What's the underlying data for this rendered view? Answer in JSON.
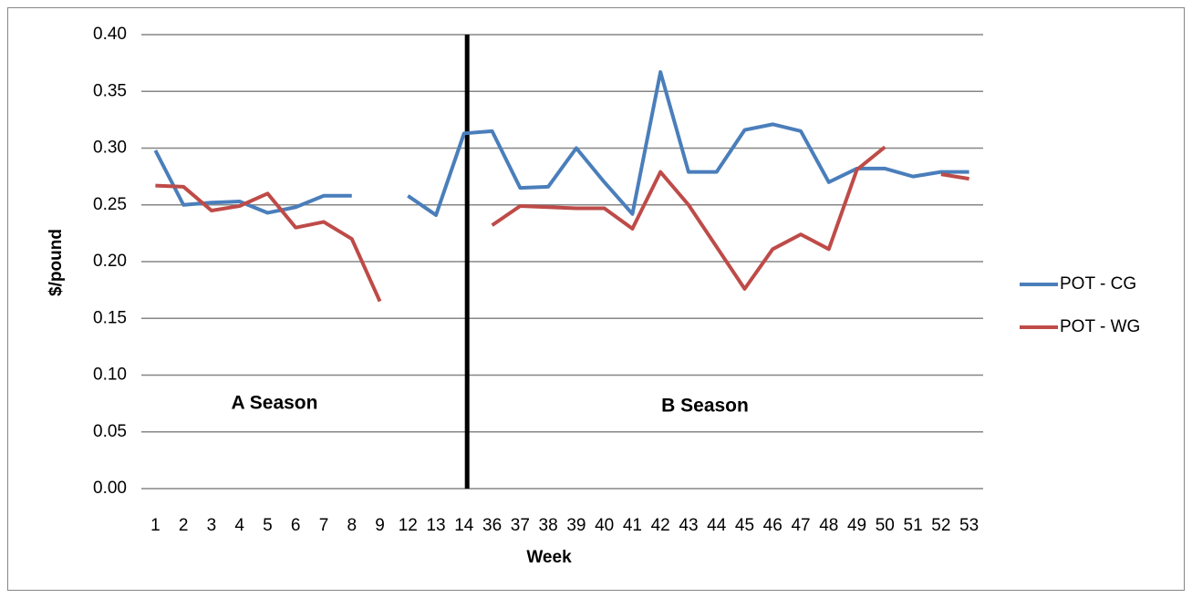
{
  "chart_data": {
    "type": "line",
    "categories": [
      "1",
      "2",
      "3",
      "4",
      "5",
      "6",
      "7",
      "8",
      "9",
      "12",
      "13",
      "14",
      "36",
      "37",
      "38",
      "39",
      "40",
      "41",
      "42",
      "43",
      "44",
      "45",
      "46",
      "47",
      "48",
      "49",
      "50",
      "51",
      "52",
      "53"
    ],
    "series": [
      {
        "name": "POT - CG",
        "color": "#4a7ebb",
        "values": [
          0.298,
          0.25,
          0.252,
          0.253,
          0.243,
          0.248,
          0.258,
          0.258,
          null,
          0.258,
          0.241,
          0.313,
          0.315,
          0.265,
          0.266,
          0.3,
          0.27,
          0.242,
          0.367,
          0.279,
          0.279,
          0.316,
          0.321,
          0.315,
          0.27,
          0.282,
          0.282,
          0.275,
          0.279,
          0.279
        ]
      },
      {
        "name": "POT - WG",
        "color": "#be4b48",
        "values": [
          0.267,
          0.266,
          0.245,
          0.249,
          0.26,
          0.23,
          0.235,
          0.22,
          0.165,
          null,
          null,
          null,
          0.232,
          0.249,
          0.248,
          0.247,
          0.247,
          0.229,
          0.279,
          0.25,
          0.213,
          0.176,
          0.211,
          0.224,
          0.211,
          0.281,
          0.301,
          null,
          0.277,
          0.273
        ]
      }
    ],
    "ylim": [
      0,
      0.4
    ],
    "yticks": [
      {
        "value": 0,
        "label": "0.00"
      },
      {
        "value": 0.05,
        "label": "0.05"
      },
      {
        "value": 0.1,
        "label": "0.10"
      },
      {
        "value": 0.15,
        "label": "0.15"
      },
      {
        "value": 0.2,
        "label": "0.20"
      },
      {
        "value": 0.25,
        "label": "0.25"
      },
      {
        "value": 0.3,
        "label": "0.30"
      },
      {
        "value": 0.35,
        "label": "0.35"
      },
      {
        "value": 0.4,
        "label": "0.40"
      }
    ],
    "y_label": "$/pound",
    "x_label": "Week",
    "annotations": [
      "A Season",
      "B Season"
    ],
    "grid": true,
    "legend": "right"
  }
}
